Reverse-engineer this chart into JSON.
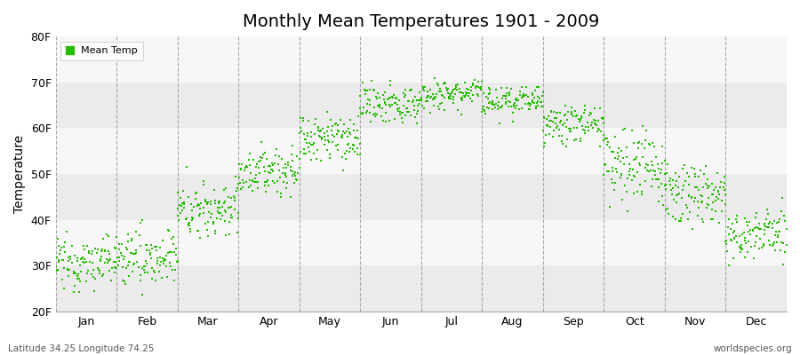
{
  "title": "Monthly Mean Temperatures 1901 - 2009",
  "ylabel": "Temperature",
  "xlabel": "",
  "footer_left": "Latitude 34.25 Longitude 74.25",
  "footer_right": "worldspecies.org",
  "legend_label": "Mean Temp",
  "dot_color": "#22bb00",
  "dot_size": 4,
  "ylim": [
    20,
    80
  ],
  "yticks": [
    20,
    30,
    40,
    50,
    60,
    70,
    80
  ],
  "ytick_labels": [
    "20F",
    "30F",
    "40F",
    "50F",
    "60F",
    "70F",
    "80F"
  ],
  "months": [
    "Jan",
    "Feb",
    "Mar",
    "Apr",
    "May",
    "Jun",
    "Jul",
    "Aug",
    "Sep",
    "Oct",
    "Nov",
    "Dec"
  ],
  "bg_color": "#ffffff",
  "plot_bg_color": "#ffffff",
  "band_colors": [
    "#ebebeb",
    "#f7f7f7"
  ],
  "n_years": 109,
  "year_start": 1901,
  "year_end": 2009,
  "month_means": [
    30.5,
    31.5,
    42.0,
    50.5,
    57.5,
    65.0,
    67.5,
    65.5,
    60.5,
    51.5,
    45.5,
    36.5
  ],
  "month_stds": [
    3.2,
    3.5,
    3.5,
    3.0,
    3.2,
    2.5,
    2.0,
    2.0,
    2.5,
    4.5,
    3.5,
    3.2
  ],
  "month_mins": [
    23.0,
    22.0,
    36.0,
    45.0,
    49.0,
    61.0,
    63.0,
    61.0,
    56.0,
    39.0,
    38.0,
    29.0
  ],
  "month_maxs": [
    37.5,
    40.0,
    52.0,
    57.0,
    64.0,
    70.5,
    71.0,
    69.0,
    65.0,
    62.0,
    55.0,
    46.0
  ],
  "trend_per_year": [
    0.005,
    0.005,
    0.005,
    0.005,
    0.005,
    0.005,
    0.005,
    0.005,
    0.005,
    0.005,
    0.005,
    0.005
  ]
}
